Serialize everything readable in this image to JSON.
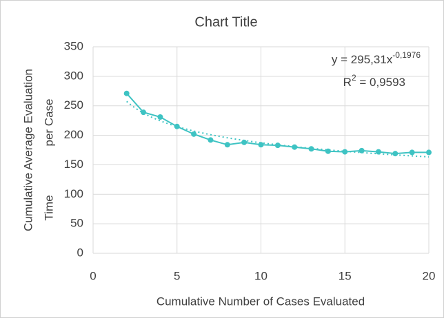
{
  "chart_data": {
    "type": "line",
    "title": "Chart Title",
    "xlabel": "Cumulative Number of Cases Evaluated",
    "ylabel": [
      "Cumulative Average Evaluation",
      "per Case",
      "Time"
    ],
    "x": [
      2,
      3,
      4,
      5,
      6,
      7,
      8,
      9,
      10,
      11,
      12,
      13,
      14,
      15,
      16,
      17,
      18,
      19,
      20
    ],
    "series": [
      {
        "name": "Cumulative Average Evaluation per Case Time",
        "color": "#3ec3c3",
        "values": [
          271,
          239,
          231,
          215,
          202,
          192,
          184,
          188,
          184,
          183,
          180,
          177,
          173,
          172,
          174,
          172,
          169,
          171,
          171
        ]
      }
    ],
    "trendline": {
      "type": "power",
      "coefficient": 295.31,
      "exponent": -0.1976,
      "r2": 0.9593,
      "equation_text": "y = 295,31x",
      "equation_exponent": "-0,1976",
      "r2_symbol": "R",
      "r2_power": "2",
      "r2_text": " = 0,9593"
    },
    "xlim": [
      0,
      20
    ],
    "xticks": [
      0,
      5,
      10,
      15,
      20
    ],
    "ylim": [
      0,
      350
    ],
    "yticks": [
      0,
      50,
      100,
      150,
      200,
      250,
      300,
      350
    ],
    "grid": true
  }
}
